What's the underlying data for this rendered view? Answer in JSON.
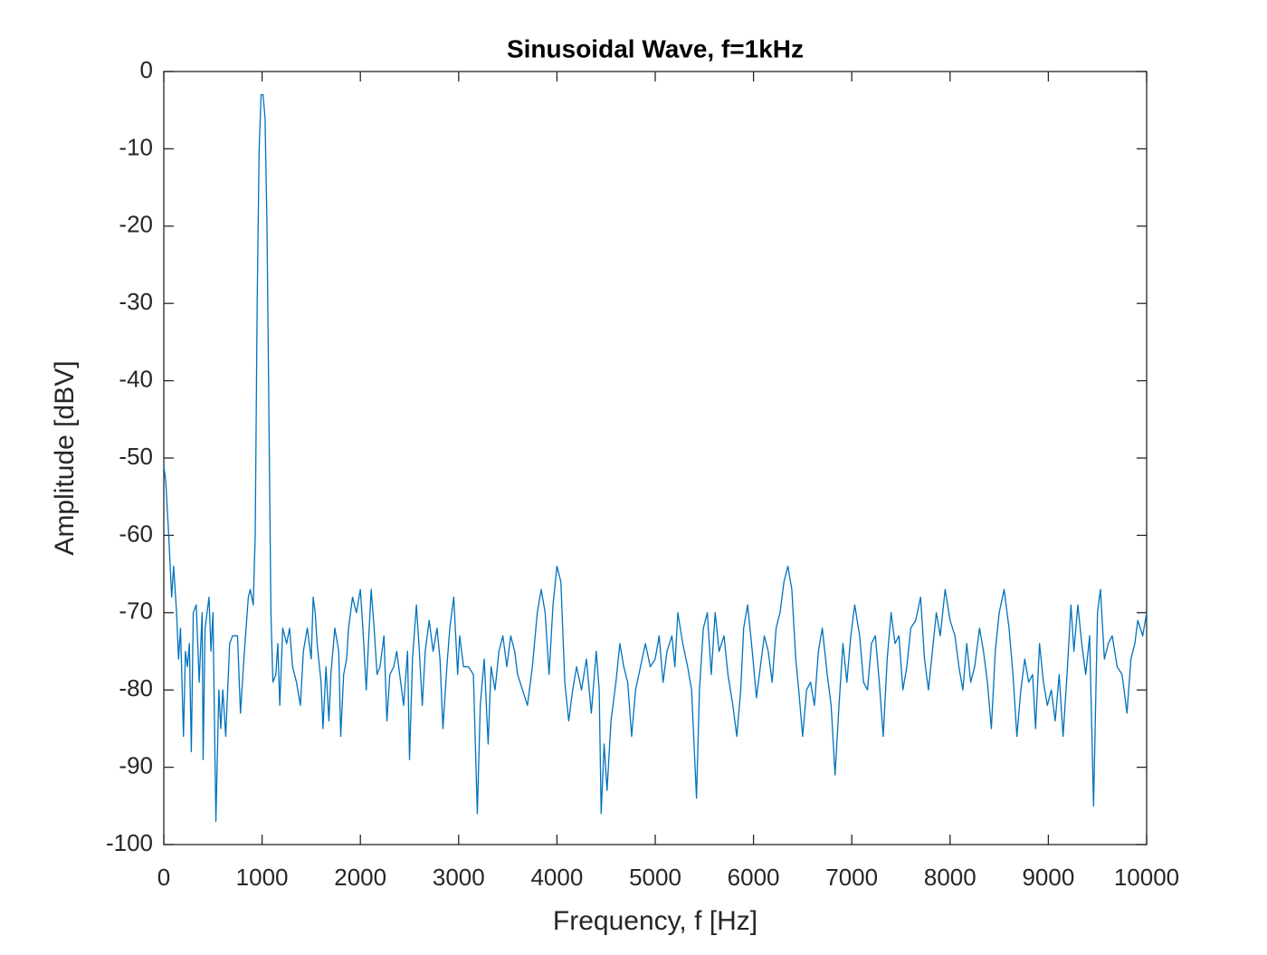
{
  "chart_data": {
    "type": "line",
    "title": "Sinusoidal Wave, f=1kHz",
    "x_label": "Frequency, f [Hz]",
    "y_label": "Amplitude [dBV]",
    "color": "#0072bd",
    "xlim": [
      0,
      10000
    ],
    "xticks": [
      0,
      1000,
      2000,
      3000,
      4000,
      5000,
      6000,
      7000,
      8000,
      9000,
      10000
    ],
    "ylim": [
      -100,
      0
    ],
    "yticks": [
      -100,
      -90,
      -80,
      -70,
      -60,
      -50,
      -40,
      -30,
      -20,
      -10,
      0
    ],
    "x": [
      0,
      20,
      50,
      80,
      100,
      130,
      150,
      170,
      200,
      220,
      240,
      260,
      280,
      300,
      330,
      360,
      390,
      400,
      420,
      460,
      480,
      500,
      530,
      560,
      580,
      600,
      630,
      670,
      700,
      750,
      780,
      820,
      860,
      880,
      910,
      930,
      950,
      970,
      990,
      1010,
      1030,
      1050,
      1070,
      1090,
      1110,
      1140,
      1160,
      1180,
      1210,
      1250,
      1280,
      1310,
      1350,
      1390,
      1420,
      1460,
      1500,
      1520,
      1540,
      1560,
      1600,
      1620,
      1650,
      1680,
      1700,
      1740,
      1780,
      1800,
      1830,
      1860,
      1880,
      1920,
      1960,
      2000,
      2030,
      2060,
      2090,
      2110,
      2140,
      2170,
      2200,
      2240,
      2270,
      2300,
      2340,
      2370,
      2400,
      2440,
      2480,
      2500,
      2530,
      2570,
      2600,
      2630,
      2660,
      2700,
      2740,
      2780,
      2810,
      2840,
      2880,
      2910,
      2950,
      2990,
      3010,
      3050,
      3100,
      3150,
      3190,
      3220,
      3260,
      3300,
      3330,
      3370,
      3410,
      3450,
      3490,
      3530,
      3570,
      3600,
      3650,
      3700,
      3750,
      3800,
      3840,
      3880,
      3920,
      3960,
      4000,
      4040,
      4080,
      4120,
      4160,
      4200,
      4250,
      4300,
      4350,
      4400,
      4430,
      4450,
      4480,
      4510,
      4550,
      4600,
      4640,
      4680,
      4720,
      4760,
      4800,
      4850,
      4900,
      4950,
      5000,
      5040,
      5080,
      5120,
      5170,
      5200,
      5230,
      5280,
      5330,
      5370,
      5420,
      5450,
      5490,
      5530,
      5570,
      5610,
      5650,
      5700,
      5740,
      5790,
      5830,
      5870,
      5900,
      5940,
      5980,
      6030,
      6070,
      6110,
      6150,
      6190,
      6230,
      6270,
      6310,
      6350,
      6390,
      6430,
      6460,
      6500,
      6540,
      6580,
      6620,
      6660,
      6700,
      6750,
      6790,
      6830,
      6870,
      6910,
      6950,
      6990,
      7030,
      7080,
      7120,
      7160,
      7200,
      7240,
      7280,
      7320,
      7360,
      7400,
      7440,
      7480,
      7520,
      7560,
      7600,
      7650,
      7700,
      7740,
      7780,
      7820,
      7860,
      7900,
      7950,
      8000,
      8050,
      8090,
      8130,
      8170,
      8210,
      8250,
      8300,
      8340,
      8380,
      8420,
      8460,
      8500,
      8550,
      8600,
      8640,
      8680,
      8720,
      8760,
      8800,
      8840,
      8870,
      8910,
      8950,
      8990,
      9030,
      9070,
      9110,
      9150,
      9190,
      9230,
      9260,
      9300,
      9340,
      9380,
      9420,
      9460,
      9500,
      9530,
      9570,
      9610,
      9650,
      9700,
      9750,
      9800,
      9840,
      9880,
      9910,
      9960,
      10000
    ],
    "values": [
      -51,
      -53,
      -60,
      -68,
      -64,
      -70,
      -76,
      -72,
      -86,
      -75,
      -77,
      -74,
      -88,
      -70,
      -69,
      -79,
      -70,
      -89,
      -72,
      -68,
      -75,
      -70,
      -97,
      -80,
      -85,
      -80,
      -86,
      -74,
      -73,
      -73,
      -83,
      -75,
      -68,
      -67,
      -69,
      -60,
      -30,
      -10,
      -3,
      -3,
      -6,
      -20,
      -45,
      -70,
      -79,
      -78,
      -74,
      -82,
      -72,
      -74,
      -72,
      -77,
      -79,
      -82,
      -75,
      -72,
      -76,
      -68,
      -70,
      -74,
      -79,
      -85,
      -77,
      -84,
      -78,
      -72,
      -75,
      -86,
      -78,
      -76,
      -72,
      -68,
      -70,
      -67,
      -73,
      -80,
      -72,
      -67,
      -72,
      -78,
      -77,
      -73,
      -84,
      -78,
      -77,
      -75,
      -78,
      -82,
      -75,
      -89,
      -76,
      -69,
      -75,
      -82,
      -75,
      -71,
      -75,
      -72,
      -76,
      -85,
      -77,
      -72,
      -68,
      -78,
      -73,
      -77,
      -77,
      -78,
      -96,
      -82,
      -76,
      -87,
      -77,
      -80,
      -75,
      -73,
      -77,
      -73,
      -75,
      -78,
      -80,
      -82,
      -77,
      -70,
      -67,
      -70,
      -78,
      -69,
      -64,
      -66,
      -79,
      -84,
      -80,
      -77,
      -80,
      -76,
      -83,
      -75,
      -80,
      -96,
      -87,
      -93,
      -84,
      -79,
      -74,
      -77,
      -79,
      -86,
      -80,
      -77,
      -74,
      -77,
      -76,
      -73,
      -79,
      -75,
      -73,
      -77,
      -70,
      -74,
      -77,
      -80,
      -94,
      -80,
      -72,
      -70,
      -78,
      -70,
      -75,
      -73,
      -78,
      -82,
      -86,
      -80,
      -72,
      -69,
      -74,
      -81,
      -77,
      -73,
      -75,
      -79,
      -72,
      -70,
      -66,
      -64,
      -67,
      -76,
      -80,
      -86,
      -80,
      -79,
      -82,
      -75,
      -72,
      -78,
      -82,
      -91,
      -82,
      -74,
      -79,
      -73,
      -69,
      -73,
      -79,
      -80,
      -74,
      -73,
      -79,
      -86,
      -76,
      -70,
      -74,
      -73,
      -80,
      -77,
      -72,
      -71,
      -68,
      -76,
      -80,
      -75,
      -70,
      -73,
      -67,
      -71,
      -73,
      -77,
      -80,
      -74,
      -79,
      -77,
      -72,
      -75,
      -79,
      -85,
      -75,
      -70,
      -67,
      -72,
      -78,
      -86,
      -80,
      -76,
      -79,
      -78,
      -85,
      -74,
      -79,
      -82,
      -80,
      -84,
      -78,
      -86,
      -78,
      -69,
      -75,
      -69,
      -74,
      -78,
      -73,
      -95,
      -70,
      -67,
      -76,
      -74,
      -73,
      -77,
      -78,
      -83,
      -76,
      -74,
      -71,
      -73,
      -70
    ]
  }
}
